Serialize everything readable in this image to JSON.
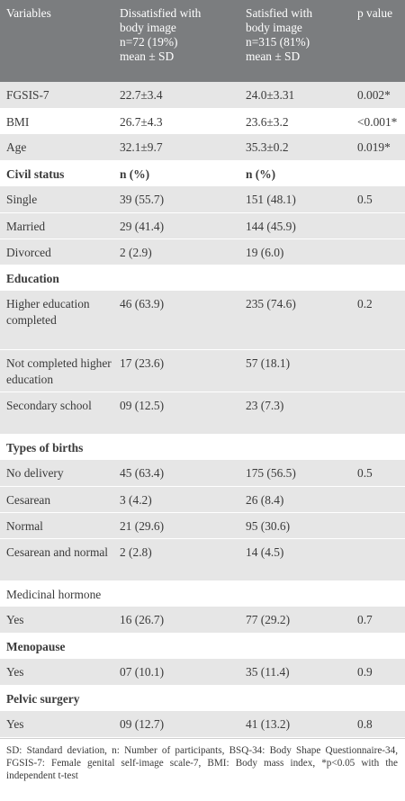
{
  "header": {
    "col1": "Variables",
    "col2": [
      "Dissatisfied with",
      "body image",
      "n=72 (19%)",
      "mean ± SD"
    ],
    "col3": [
      "Satisfied with",
      "body image",
      "n=315 (81%)",
      "mean ± SD"
    ],
    "col4": "p value"
  },
  "rows": [
    {
      "type": "data",
      "shade": true,
      "lines": 1,
      "label": "FGSIS-7",
      "v1": "22.7±3.4",
      "v2": "24.0±3.31",
      "p": "0.002*"
    },
    {
      "type": "data",
      "shade": false,
      "lines": 1,
      "label": "BMI",
      "v1": "26.7±4.3",
      "v2": "23.6±3.2",
      "p": "<0.001*"
    },
    {
      "type": "data",
      "shade": true,
      "lines": 1,
      "label": "Age",
      "v1": "32.1±9.7",
      "v2": "35.3±0.2",
      "p": "0.019*"
    },
    {
      "type": "section",
      "shade": false,
      "lines": 1,
      "label": "Civil status",
      "v1": "n (%)",
      "v2": "n (%)",
      "p": ""
    },
    {
      "type": "data",
      "shade": true,
      "lines": 1,
      "label": "Single",
      "v1": "39 (55.7)",
      "v2": "151 (48.1)",
      "p": "0.5"
    },
    {
      "type": "data",
      "shade": true,
      "lines": 1,
      "label": "Married",
      "v1": "29 (41.4)",
      "v2": "144 (45.9)",
      "p": ""
    },
    {
      "type": "data",
      "shade": true,
      "lines": 1,
      "label": "Divorced",
      "v1": "2 (2.9)",
      "v2": "19 (6.0)",
      "p": ""
    },
    {
      "type": "section",
      "shade": false,
      "lines": 1,
      "label": "Education",
      "v1": "",
      "v2": "",
      "p": ""
    },
    {
      "type": "data",
      "shade": true,
      "lines": 3,
      "label": "Higher education completed",
      "v1": "46 (63.9)",
      "v2": "235 (74.6)",
      "p": "0.2"
    },
    {
      "type": "data",
      "shade": true,
      "lines": 2,
      "label": "Not completed higher education",
      "v1": "17 (23.6)",
      "v2": "57 (18.1)",
      "p": ""
    },
    {
      "type": "data",
      "shade": true,
      "lines": 2,
      "label": "Secondary school",
      "v1": "09 (12.5)",
      "v2": "23 (7.3)",
      "p": ""
    },
    {
      "type": "section",
      "shade": false,
      "lines": 1,
      "label": "Types of births",
      "v1": "",
      "v2": "",
      "p": ""
    },
    {
      "type": "data",
      "shade": true,
      "lines": 1,
      "label": "No delivery",
      "v1": "45 (63.4)",
      "v2": "175 (56.5)",
      "p": "0.5"
    },
    {
      "type": "data",
      "shade": true,
      "lines": 1,
      "label": "Cesarean",
      "v1": "3 (4.2)",
      "v2": "26 (8.4)",
      "p": ""
    },
    {
      "type": "data",
      "shade": true,
      "lines": 1,
      "label": "Normal",
      "v1": "21 (29.6)",
      "v2": "95 (30.6)",
      "p": ""
    },
    {
      "type": "data",
      "shade": true,
      "lines": 2,
      "label": "Cesarean and normal",
      "v1": "2 (2.8)",
      "v2": "14 (4.5)",
      "p": ""
    },
    {
      "type": "subsection",
      "shade": false,
      "lines": 1,
      "label": "Medicinal hormone",
      "v1": "",
      "v2": "",
      "p": ""
    },
    {
      "type": "data",
      "shade": true,
      "lines": 1,
      "label": "Yes",
      "v1": "16 (26.7)",
      "v2": "77 (29.2)",
      "p": "0.7"
    },
    {
      "type": "section",
      "shade": false,
      "lines": 1,
      "label": "Menopause",
      "v1": "",
      "v2": "",
      "p": ""
    },
    {
      "type": "data",
      "shade": true,
      "lines": 1,
      "label": "Yes",
      "v1": "07 (10.1)",
      "v2": "35 (11.4)",
      "p": "0.9"
    },
    {
      "type": "section",
      "shade": false,
      "lines": 1,
      "label": "Pelvic surgery",
      "v1": "",
      "v2": "",
      "p": ""
    },
    {
      "type": "data",
      "shade": true,
      "lines": 1,
      "label": "Yes",
      "v1": "09 (12.7)",
      "v2": "41 (13.2)",
      "p": "0.8"
    }
  ],
  "footnote": "SD: Standard deviation, n: Number of participants, BSQ-34: Body Shape Questionnaire-34, FGSIS-7: Female genital self-image scale-7, BMI: Body mass index, *p<0.05 with the independent t-test"
}
